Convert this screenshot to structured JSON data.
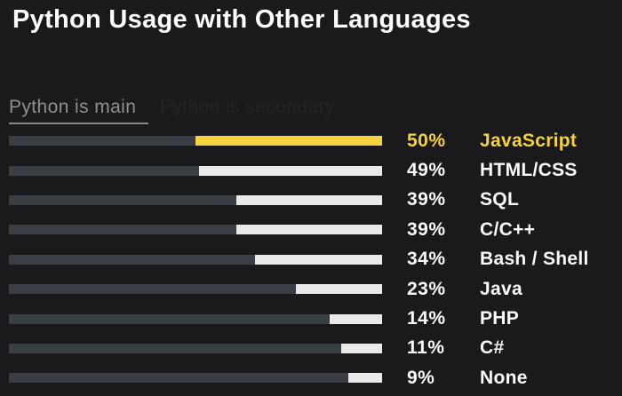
{
  "title": "Python Usage with Other Languages",
  "tabs": [
    {
      "label": "Python is main",
      "active": true
    },
    {
      "label": "Python is secondary",
      "active": false
    }
  ],
  "colors": {
    "background": "#1a1a1c",
    "track": "#3a3e45",
    "bar_default": "#e9e9ea",
    "bar_highlight": "#f5d33c",
    "text_default": "#fafafa",
    "text_highlight": "#f5d33c",
    "tab_active_text": "#8f9094",
    "tab_ghost_text": "#242428",
    "title_text": "#ffffff"
  },
  "chart_data": {
    "type": "bar",
    "orientation": "horizontal",
    "title": "Python Usage with Other Languages",
    "subtitle_tab": "Python is main",
    "categories": [
      "JavaScript",
      "HTML/CSS",
      "SQL",
      "C/C++",
      "Bash / Shell",
      "Java",
      "PHP",
      "C#",
      "None"
    ],
    "values": [
      50,
      49,
      39,
      39,
      34,
      23,
      14,
      11,
      9
    ],
    "value_labels": [
      "50%",
      "49%",
      "39%",
      "39%",
      "34%",
      "23%",
      "14%",
      "11%",
      "9%"
    ],
    "unit": "%",
    "xlim": [
      0,
      100
    ],
    "highlight_index": 0,
    "bars_right_anchored": true,
    "grid": false,
    "legend": "none"
  }
}
